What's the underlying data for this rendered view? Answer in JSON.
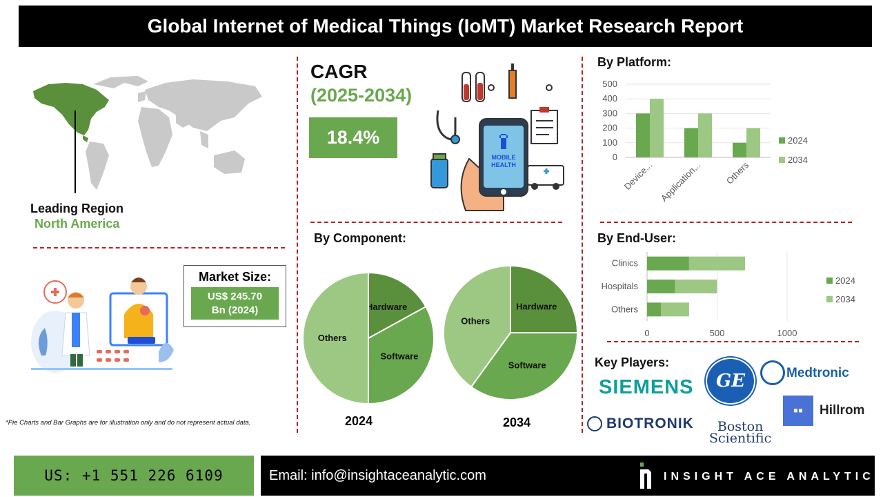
{
  "header": {
    "title": "Global Internet of Medical Things (IoMT) Market Research Report"
  },
  "region": {
    "label": "Leading Region",
    "value": "North America"
  },
  "market_size": {
    "label": "Market Size:",
    "value_line1": "US$ 245.70",
    "value_line2": "Bn (2024)"
  },
  "cagr": {
    "label": "CAGR",
    "period": "(2025-2034)",
    "value": "18.4%"
  },
  "phone_illustration": {
    "screen_text_1": "MOBILE",
    "screen_text_2": "HEALTH"
  },
  "component": {
    "title": "By Component:",
    "year_2024": "2024",
    "year_2034": "2034"
  },
  "platform": {
    "title": "By Platform:"
  },
  "enduser": {
    "title": "By End-User:"
  },
  "key_players": {
    "title": "Key Players:",
    "siemens": "SIEMENS",
    "ge": "GE",
    "medtronic": "Medtronic",
    "hillrom": "Hillrom",
    "biotronik": "BIOTRONIK",
    "boston_line1": "Boston",
    "boston_line2": "Scientific"
  },
  "disclaimer": "*Pie Charts and Bar Graphs are for illustration only and do not represent actual data.",
  "footer": {
    "phone": "US: +1 551 226 6109",
    "email": "Email: info@insightaceanalytic.com",
    "brand": "INSIGHT ACE ANALYTIC"
  },
  "colors": {
    "dark_green": "#5a8f3c",
    "mid_green": "#6aa84f",
    "light_green": "#9cc883",
    "divider_red": "#b22222"
  },
  "chart_data": [
    {
      "id": "platform",
      "type": "bar",
      "categories": [
        "Device...",
        "Application...",
        "Others"
      ],
      "series": [
        {
          "name": "2024",
          "values": [
            300,
            200,
            100
          ]
        },
        {
          "name": "2034",
          "values": [
            400,
            300,
            200
          ]
        }
      ],
      "yticks": [
        "0",
        "100",
        "200",
        "300",
        "400",
        "500"
      ],
      "ylim": [
        0,
        500
      ],
      "legend": "right"
    },
    {
      "id": "enduser",
      "type": "bar",
      "orientation": "horizontal-stacked",
      "categories": [
        "Clinics",
        "Hospitals",
        "Others"
      ],
      "series": [
        {
          "name": "2024",
          "values": [
            300,
            200,
            100
          ]
        },
        {
          "name": "2034",
          "values": [
            400,
            300,
            200
          ]
        }
      ],
      "xticks": [
        "0",
        "500",
        "1000"
      ],
      "xlim": [
        0,
        1000
      ],
      "legend": "right"
    },
    {
      "id": "component_2024",
      "type": "pie",
      "labels": [
        "Hardware",
        "Software",
        "Others"
      ],
      "values": [
        17,
        33,
        50
      ]
    },
    {
      "id": "component_2034",
      "type": "pie",
      "labels": [
        "Hardware",
        "Software",
        "Others"
      ],
      "values": [
        25,
        35,
        40
      ]
    }
  ]
}
